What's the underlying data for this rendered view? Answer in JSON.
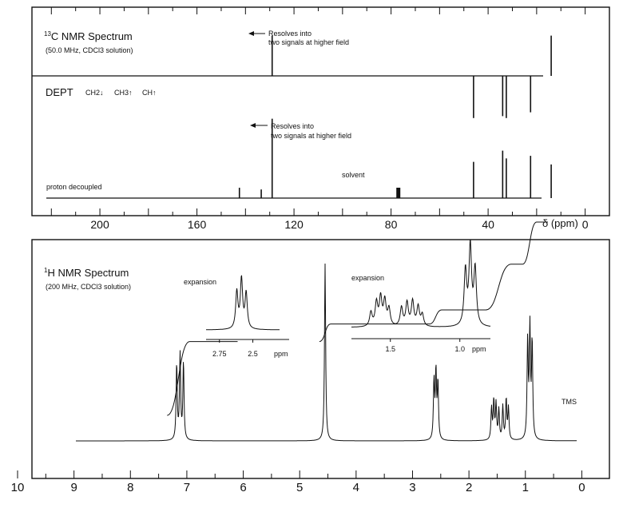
{
  "chart_data": [
    {
      "type": "line",
      "title": "13C NMR Spectrum",
      "title_sup": "13",
      "title_main": "C NMR Spectrum",
      "subtitle": "(50.0 MHz, CDCl3 solution)",
      "xlabel": "δ (ppm)",
      "xlim": [
        228,
        -10
      ],
      "x_ticks": [
        200,
        160,
        120,
        80,
        40,
        0
      ],
      "dept": {
        "label": "DEPT",
        "legend": [
          "CH2↓",
          "CH3↑",
          "CH↑"
        ],
        "peaks": [
          {
            "ppm": 129.0,
            "rel": 0.42
          },
          {
            "ppm": 14.0,
            "rel": 0.42
          },
          {
            "ppm": 46.0,
            "rel": -0.44
          },
          {
            "ppm": 34.0,
            "rel": -0.42
          },
          {
            "ppm": 32.5,
            "rel": -0.44
          },
          {
            "ppm": 22.5,
            "rel": -0.38
          }
        ],
        "annotation": [
          "Resolves into",
          "two signals at higher field"
        ]
      },
      "proton_decoupled": {
        "label": "proton decoupled",
        "solvent_label": "solvent",
        "solvent_ppm": 77.0,
        "peaks": [
          {
            "ppm": 142.5,
            "rel": 0.12
          },
          {
            "ppm": 133.5,
            "rel": 0.1
          },
          {
            "ppm": 129.0,
            "rel": 0.92
          },
          {
            "ppm": 46.0,
            "rel": 0.42
          },
          {
            "ppm": 34.0,
            "rel": 0.55
          },
          {
            "ppm": 32.5,
            "rel": 0.46
          },
          {
            "ppm": 22.5,
            "rel": 0.49
          },
          {
            "ppm": 14.0,
            "rel": 0.39
          }
        ],
        "annotation": [
          "Resolves into",
          "two signals at higher field"
        ]
      }
    },
    {
      "type": "line",
      "title": "1H NMR Spectrum",
      "title_sup": "1",
      "title_main": "H NMR Spectrum",
      "subtitle": "(200 MHz, CDCl3 solution)",
      "xlim": [
        10.0,
        -0.15
      ],
      "x_ticks": [
        10,
        9,
        8,
        7,
        6,
        5,
        4,
        3,
        2,
        1,
        0
      ],
      "tms_label": "TMS",
      "peaks": [
        {
          "ppm": 7.18,
          "rel": 0.43
        },
        {
          "ppm": 7.12,
          "rel": 0.48
        },
        {
          "ppm": 7.06,
          "rel": 0.44
        },
        {
          "ppm": 4.55,
          "rel": 1.0
        },
        {
          "ppm": 2.62,
          "rel": 0.33
        },
        {
          "ppm": 2.585,
          "rel": 0.38
        },
        {
          "ppm": 2.55,
          "rel": 0.32
        },
        {
          "ppm": 1.6,
          "rel": 0.18
        },
        {
          "ppm": 1.56,
          "rel": 0.22
        },
        {
          "ppm": 1.52,
          "rel": 0.2
        },
        {
          "ppm": 1.47,
          "rel": 0.17
        },
        {
          "ppm": 1.4,
          "rel": 0.19
        },
        {
          "ppm": 1.34,
          "rel": 0.23
        },
        {
          "ppm": 1.3,
          "rel": 0.18
        },
        {
          "ppm": 0.96,
          "rel": 0.55
        },
        {
          "ppm": 0.92,
          "rel": 0.62
        },
        {
          "ppm": 0.88,
          "rel": 0.55
        },
        {
          "ppm": 0.0,
          "rel": 0.07
        }
      ],
      "integrals": [
        {
          "from": 7.35,
          "to": 6.95,
          "rise": 0.42
        },
        {
          "from": 4.65,
          "to": 4.45,
          "rise": 0.1
        },
        {
          "from": 2.7,
          "to": 2.48,
          "rise": 0.08
        },
        {
          "from": 1.7,
          "to": 1.25,
          "rise": 0.26
        },
        {
          "from": 1.05,
          "to": 0.8,
          "rise": 0.24
        }
      ],
      "insets": [
        {
          "label": "expansion",
          "xlim": [
            2.85,
            2.3
          ],
          "x_ticks": [
            "2.75",
            "2.5"
          ],
          "x_tick_values": [
            2.75,
            2.5
          ],
          "unit": "ppm",
          "peaks": [
            {
              "ppm": 2.62,
              "rel": 0.75
            },
            {
              "ppm": 2.585,
              "rel": 1.0
            },
            {
              "ppm": 2.55,
              "rel": 0.72
            }
          ]
        },
        {
          "label": "expansion",
          "xlim": [
            1.78,
            0.78
          ],
          "x_ticks": [
            "1.5",
            "1.0"
          ],
          "x_tick_values": [
            1.5,
            1.0
          ],
          "unit": "ppm",
          "peaks": [
            {
              "ppm": 1.64,
              "rel": 0.18
            },
            {
              "ppm": 1.6,
              "rel": 0.3
            },
            {
              "ppm": 1.57,
              "rel": 0.36
            },
            {
              "ppm": 1.54,
              "rel": 0.32
            },
            {
              "ppm": 1.51,
              "rel": 0.22
            },
            {
              "ppm": 1.42,
              "rel": 0.24
            },
            {
              "ppm": 1.38,
              "rel": 0.3
            },
            {
              "ppm": 1.34,
              "rel": 0.32
            },
            {
              "ppm": 1.3,
              "rel": 0.25
            },
            {
              "ppm": 1.27,
              "rel": 0.15
            },
            {
              "ppm": 0.96,
              "rel": 0.7
            },
            {
              "ppm": 0.925,
              "rel": 1.0
            },
            {
              "ppm": 0.89,
              "rel": 0.72
            }
          ]
        }
      ]
    }
  ]
}
